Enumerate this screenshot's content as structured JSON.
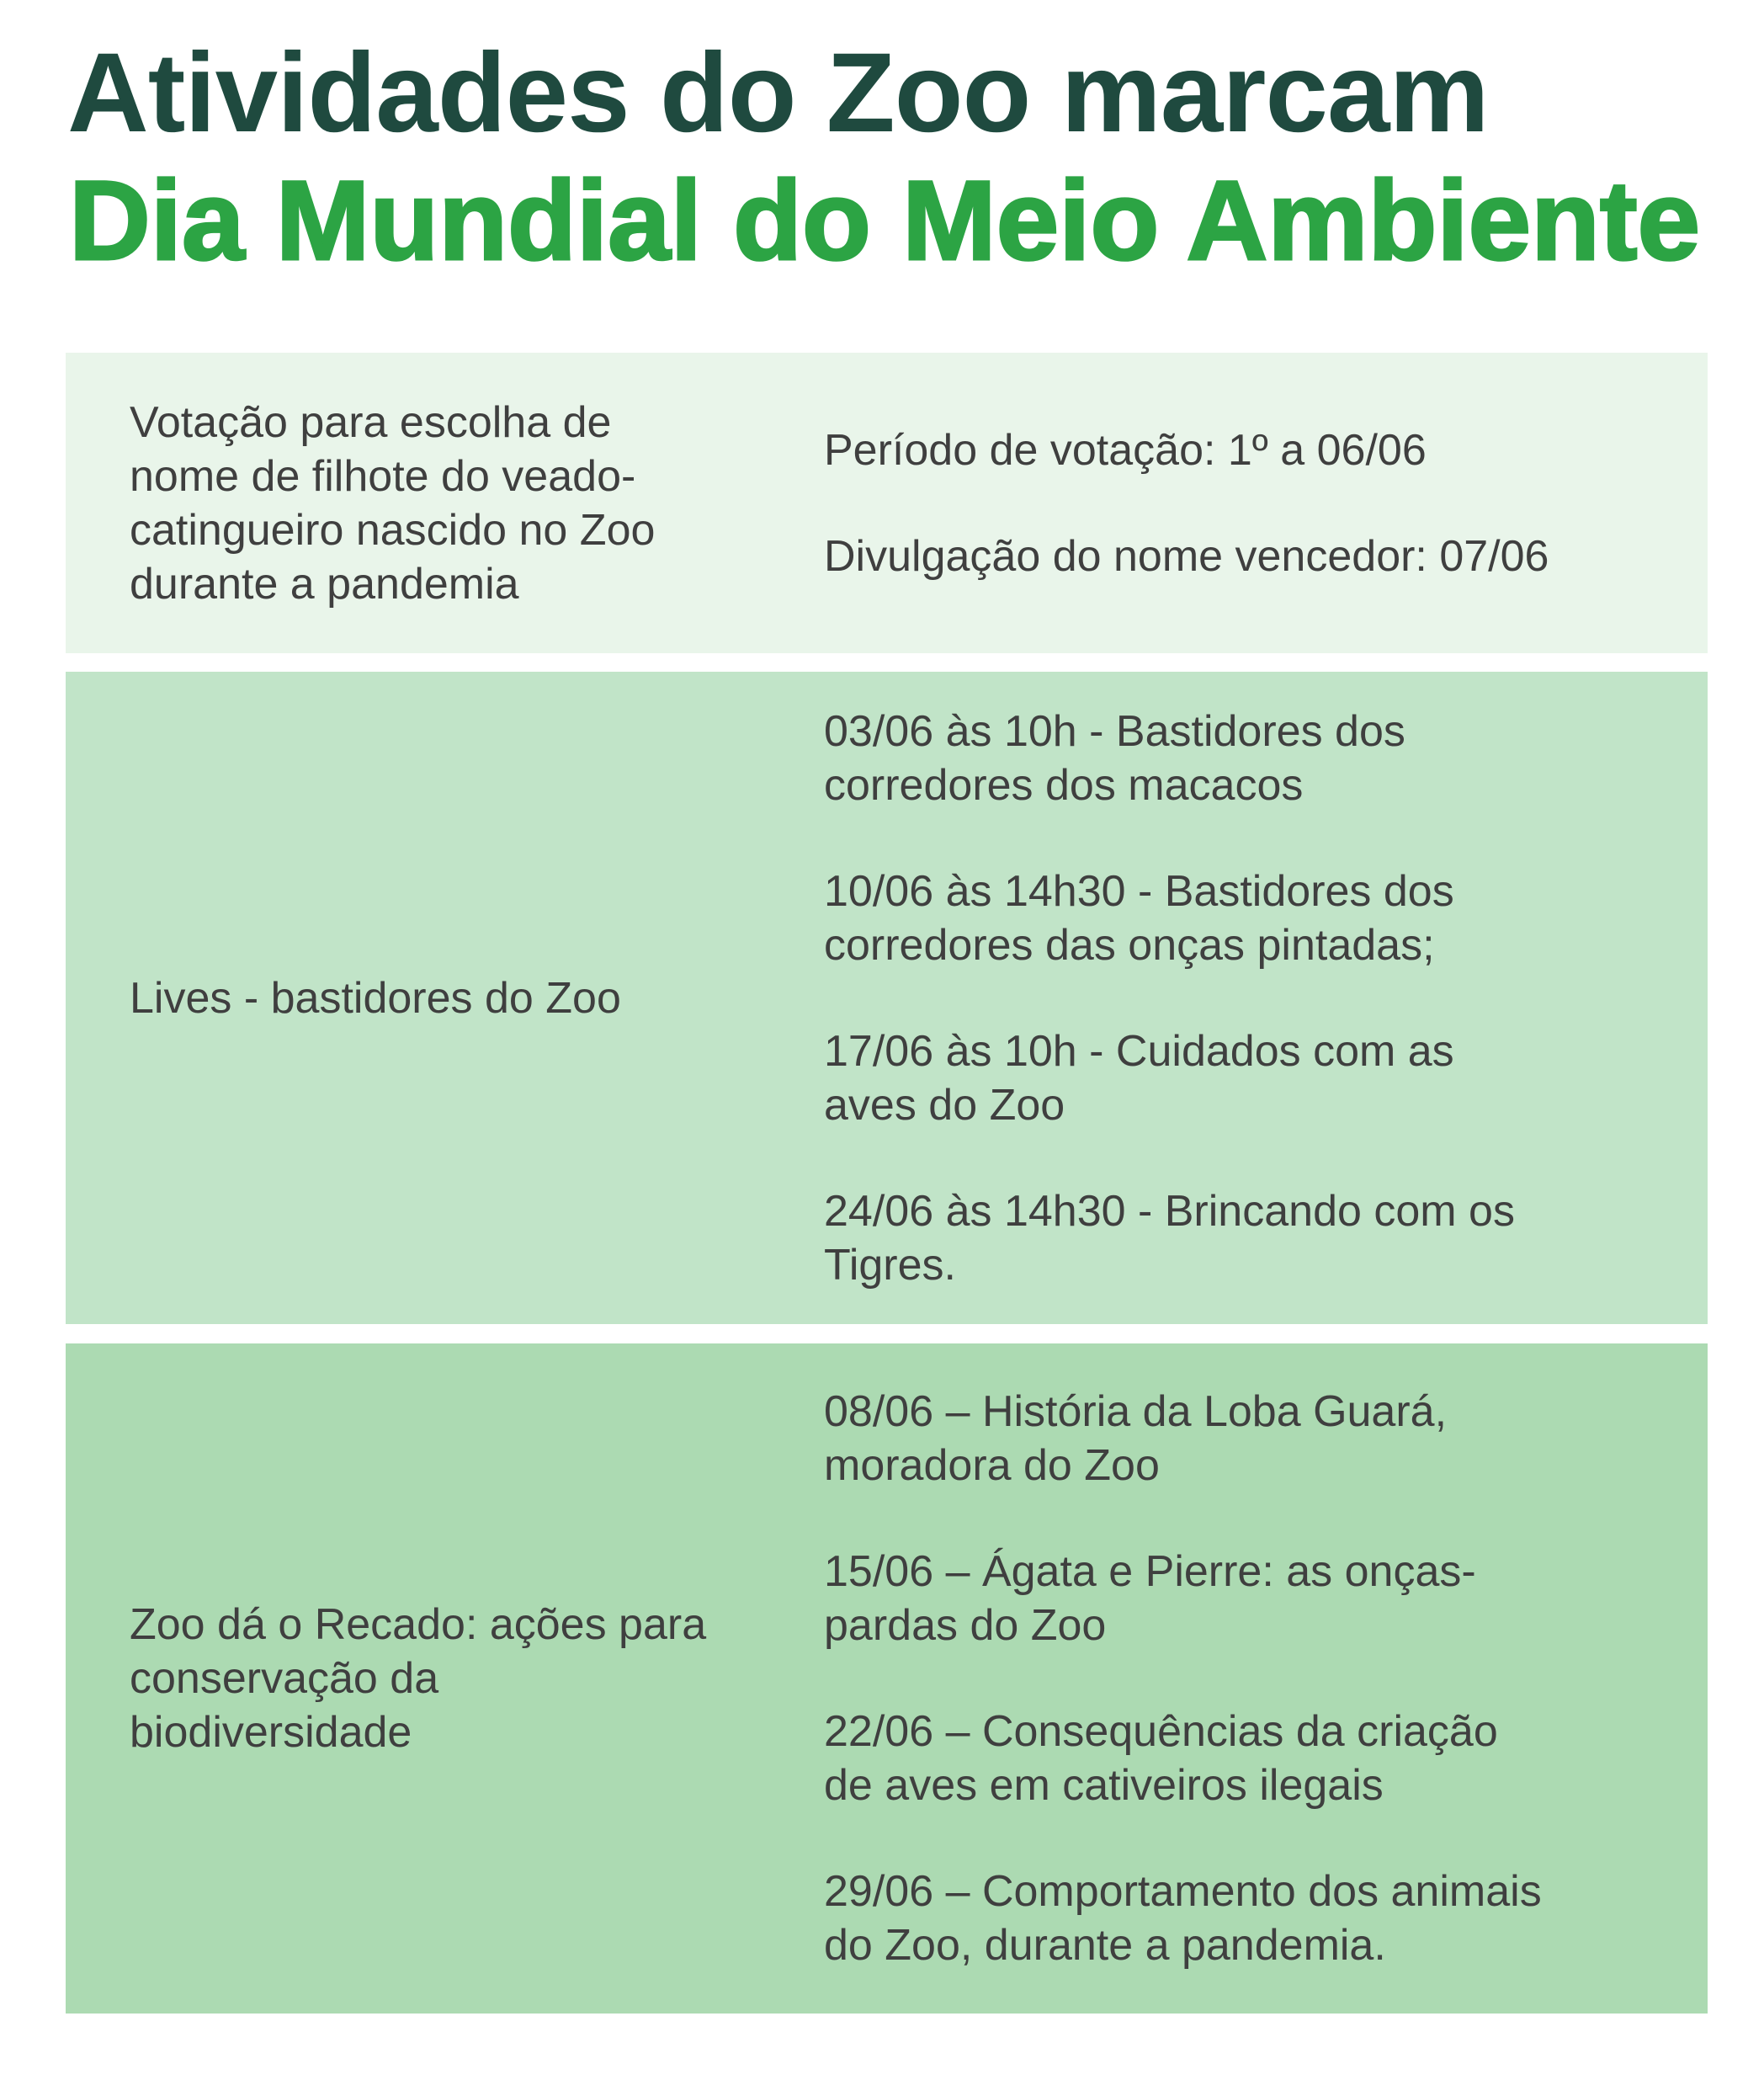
{
  "title": {
    "line1": "Atividades do Zoo marcam",
    "line2": "Dia Mundial do Meio Ambiente"
  },
  "colors": {
    "title_dark": "#1f4a3f",
    "title_green": "#2ca444",
    "row1_bg": "#e9f5ea",
    "row2_bg": "#c1e4c8",
    "row3_bg": "#acdab2",
    "text": "#3f3f3f"
  },
  "rows": [
    {
      "label_lines": [
        "Votação para escolha de",
        "nome de filhote do veado-",
        "catingueiro nascido no Zoo",
        "durante a pandemia"
      ],
      "items": [
        [
          "Período de votação: 1º a 06/06"
        ],
        [
          "Divulgação do nome vencedor: 07/06"
        ]
      ]
    },
    {
      "label_lines": [
        "Lives - bastidores do Zoo"
      ],
      "items": [
        [
          "03/06 às 10h - Bastidores dos",
          "corredores dos macacos"
        ],
        [
          "10/06 às 14h30 - Bastidores dos",
          "corredores das onças pintadas;"
        ],
        [
          "17/06 às 10h - Cuidados com as",
          "aves do Zoo"
        ],
        [
          "24/06 às 14h30 - Brincando com os",
          "Tigres."
        ]
      ]
    },
    {
      "label_lines": [
        "Zoo dá o Recado: ações para",
        "conservação da",
        "biodiversidade"
      ],
      "items": [
        [
          "08/06 – História da Loba Guará,",
          "moradora do Zoo"
        ],
        [
          "15/06 – Ágata e Pierre: as onças-",
          "pardas do Zoo"
        ],
        [
          "22/06 – Consequências da criação",
          "de aves em cativeiros ilegais"
        ],
        [
          "29/06 – Comportamento dos animais",
          "do Zoo, durante a pandemia."
        ]
      ]
    }
  ]
}
